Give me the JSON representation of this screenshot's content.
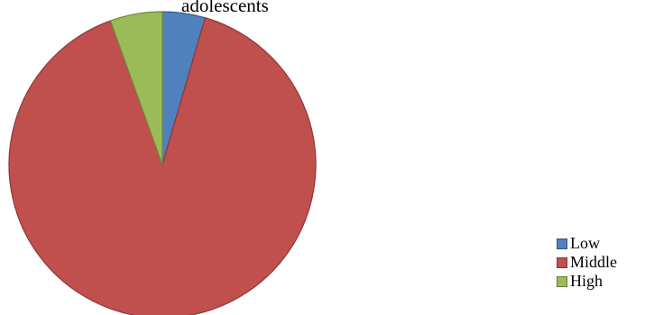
{
  "chart_data": {
    "type": "pie",
    "title": "adolescents",
    "categories": [
      "Low",
      "Middle",
      "High"
    ],
    "values": [
      4.5,
      90,
      5.5
    ],
    "colors": [
      "#4F81BD",
      "#C0504D",
      "#9BBB59"
    ],
    "legend_position": "right"
  }
}
